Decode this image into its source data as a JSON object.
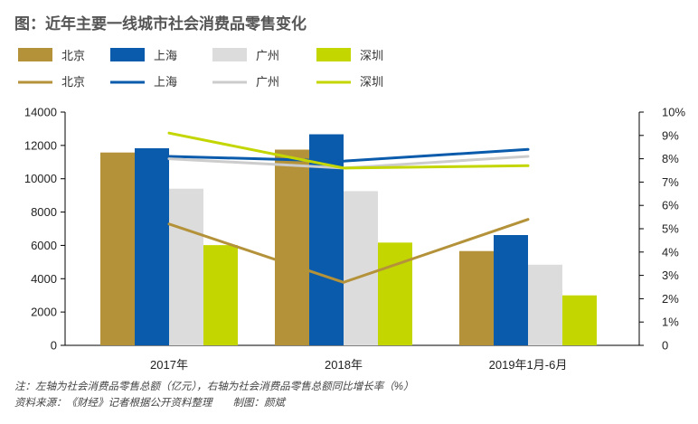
{
  "chart_data": {
    "type": "bar",
    "title": "图：近年主要一线城市社会消费品零售变化",
    "categories": [
      "2017年",
      "2018年",
      "2019年1月-6月"
    ],
    "series": [
      {
        "name": "北京",
        "type": "bar",
        "axis": "left",
        "color": "#b4923a",
        "values": [
          11575,
          11748,
          5660
        ]
      },
      {
        "name": "上海",
        "type": "bar",
        "axis": "left",
        "color": "#0a5bab",
        "values": [
          11830,
          12669,
          6620
        ]
      },
      {
        "name": "广州",
        "type": "bar",
        "axis": "left",
        "color": "#dcdcdc",
        "values": [
          9403,
          9256,
          4840
        ]
      },
      {
        "name": "深圳",
        "type": "bar",
        "axis": "left",
        "color": "#c4d600",
        "values": [
          6016,
          6168,
          3000
        ]
      },
      {
        "name": "北京",
        "type": "line",
        "axis": "right",
        "color": "#b4923a",
        "values": [
          5.2,
          2.7,
          5.4
        ]
      },
      {
        "name": "上海",
        "type": "line",
        "axis": "right",
        "color": "#0a5bab",
        "values": [
          8.1,
          7.9,
          8.4
        ]
      },
      {
        "name": "广州",
        "type": "line",
        "axis": "right",
        "color": "#cccccc",
        "values": [
          8.0,
          7.6,
          8.1
        ]
      },
      {
        "name": "深圳",
        "type": "line",
        "axis": "right",
        "color": "#c4d600",
        "values": [
          9.1,
          7.6,
          7.7
        ]
      }
    ],
    "y_left": {
      "min": 0,
      "max": 14000,
      "ticks": [
        "0",
        "2000",
        "4000",
        "6000",
        "8000",
        "10000",
        "12000",
        "14000"
      ]
    },
    "y_right": {
      "min": 0,
      "max": 10,
      "ticks": [
        "0",
        "1%",
        "2%",
        "3%",
        "4%",
        "5%",
        "6%",
        "7%",
        "8%",
        "9%",
        "10%"
      ]
    },
    "grid": false,
    "legend_position": "top-left"
  },
  "notes": {
    "line1": "注：左轴为社会消费品零售总额（亿元），右轴为社会消费品零售总额同比增长率（%）",
    "line2": "资料来源：《财经》记者根据公开资料整理　　制图：颜斌"
  }
}
